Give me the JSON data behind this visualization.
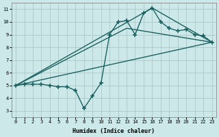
{
  "background_color": "#cce8e8",
  "grid_color": "#b0cccc",
  "line_color": "#1a6060",
  "line_width": 1.0,
  "marker": "+",
  "marker_size": 4,
  "marker_lw": 1.2,
  "xlabel": "Humidex (Indice chaleur)",
  "xlim": [
    -0.5,
    23.5
  ],
  "ylim": [
    2.5,
    11.5
  ],
  "xticks": [
    0,
    1,
    2,
    3,
    4,
    5,
    6,
    7,
    8,
    9,
    10,
    11,
    12,
    13,
    14,
    15,
    16,
    17,
    18,
    19,
    20,
    21,
    22,
    23
  ],
  "yticks": [
    3,
    4,
    5,
    6,
    7,
    8,
    9,
    10,
    11
  ],
  "curve_x": [
    0,
    1,
    2,
    3,
    4,
    5,
    6,
    7,
    8,
    9,
    10,
    11,
    12,
    13,
    14,
    15,
    16,
    17,
    18,
    19,
    20,
    21,
    22,
    23
  ],
  "curve_y": [
    5.0,
    5.1,
    5.1,
    5.1,
    5.0,
    4.9,
    4.9,
    4.6,
    3.2,
    4.2,
    5.2,
    9.0,
    10.0,
    10.1,
    9.0,
    10.7,
    11.1,
    10.0,
    9.5,
    9.3,
    9.4,
    9.0,
    8.9,
    8.4
  ],
  "line1_x": [
    0,
    23
  ],
  "line1_y": [
    5.0,
    8.4
  ],
  "line2_x": [
    0,
    23
  ],
  "line2_y": [
    5.0,
    8.4
  ],
  "line3_x": [
    0,
    23
  ],
  "line3_y": [
    5.0,
    8.4
  ],
  "extra_lines": [
    {
      "x": [
        0,
        16,
        23
      ],
      "y": [
        5.0,
        11.1,
        8.4
      ]
    },
    {
      "x": [
        0,
        13,
        23
      ],
      "y": [
        5.0,
        9.5,
        8.4
      ]
    },
    {
      "x": [
        0,
        23
      ],
      "y": [
        5.0,
        8.4
      ]
    }
  ]
}
